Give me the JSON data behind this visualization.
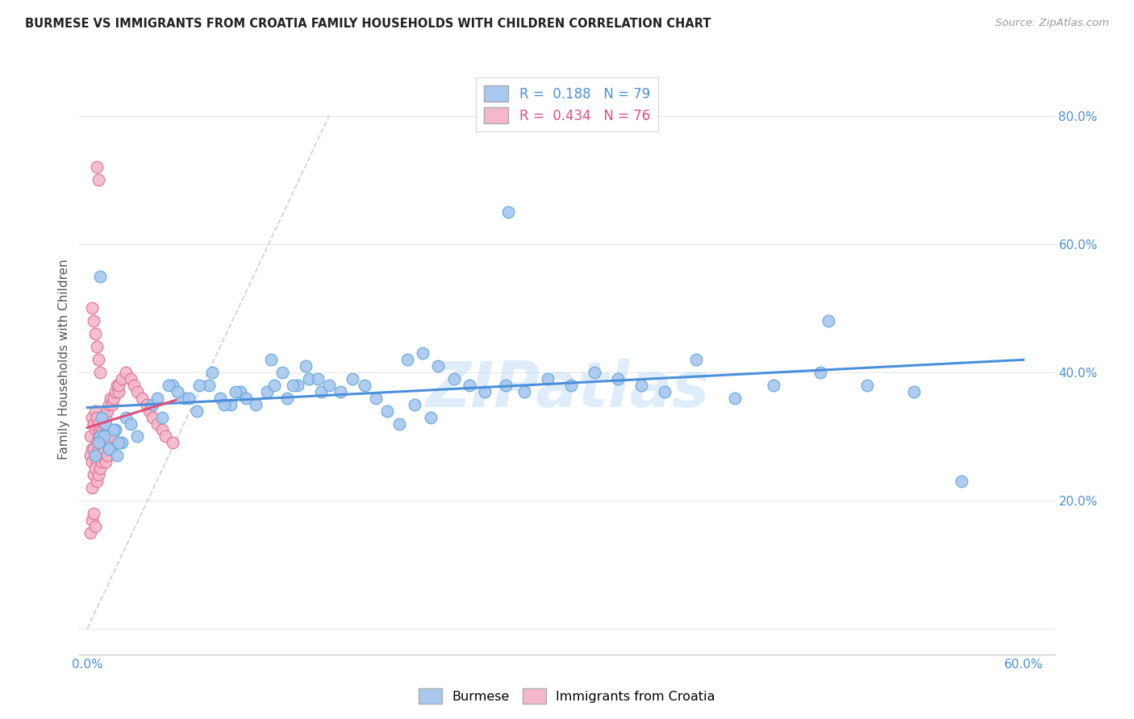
{
  "title": "BURMESE VS IMMIGRANTS FROM CROATIA FAMILY HOUSEHOLDS WITH CHILDREN CORRELATION CHART",
  "source": "Source: ZipAtlas.com",
  "ylabel": "Family Households with Children",
  "ytick_values": [
    0.0,
    0.2,
    0.4,
    0.6,
    0.8
  ],
  "ytick_labels": [
    "",
    "20.0%",
    "40.0%",
    "60.0%",
    "80.0%"
  ],
  "xlim": [
    -0.005,
    0.62
  ],
  "ylim": [
    -0.04,
    0.88
  ],
  "burmese_color": "#a8c8f0",
  "burmese_edge": "#6aaad8",
  "croatia_color": "#f5b8cb",
  "croatia_edge": "#e07898",
  "trendline_burmese_color": "#4a90d9",
  "trendline_croatia_color": "#e0507a",
  "diagonal_color": "#cccccc",
  "watermark": "ZIPatlas",
  "background_color": "#ffffff",
  "grid_color": "#e8e8e8",
  "tick_color": "#4a90d9",
  "burmese_x": [
    0.008,
    0.012,
    0.015,
    0.018,
    0.022,
    0.005,
    0.009,
    0.011,
    0.014,
    0.017,
    0.02,
    0.025,
    0.028,
    0.032,
    0.007,
    0.042,
    0.048,
    0.055,
    0.062,
    0.07,
    0.078,
    0.085,
    0.092,
    0.098,
    0.045,
    0.052,
    0.058,
    0.065,
    0.072,
    0.08,
    0.088,
    0.095,
    0.102,
    0.108,
    0.115,
    0.12,
    0.128,
    0.135,
    0.142,
    0.15,
    0.118,
    0.125,
    0.132,
    0.14,
    0.148,
    0.155,
    0.162,
    0.17,
    0.178,
    0.185,
    0.192,
    0.2,
    0.21,
    0.22,
    0.205,
    0.215,
    0.225,
    0.235,
    0.245,
    0.255,
    0.268,
    0.28,
    0.295,
    0.31,
    0.325,
    0.34,
    0.355,
    0.37,
    0.39,
    0.27,
    0.415,
    0.44,
    0.47,
    0.5,
    0.53,
    0.56,
    0.475,
    0.008,
    0.019
  ],
  "burmese_y": [
    0.3,
    0.32,
    0.28,
    0.31,
    0.29,
    0.27,
    0.33,
    0.3,
    0.28,
    0.31,
    0.29,
    0.33,
    0.32,
    0.3,
    0.29,
    0.35,
    0.33,
    0.38,
    0.36,
    0.34,
    0.38,
    0.36,
    0.35,
    0.37,
    0.36,
    0.38,
    0.37,
    0.36,
    0.38,
    0.4,
    0.35,
    0.37,
    0.36,
    0.35,
    0.37,
    0.38,
    0.36,
    0.38,
    0.39,
    0.37,
    0.42,
    0.4,
    0.38,
    0.41,
    0.39,
    0.38,
    0.37,
    0.39,
    0.38,
    0.36,
    0.34,
    0.32,
    0.35,
    0.33,
    0.42,
    0.43,
    0.41,
    0.39,
    0.38,
    0.37,
    0.38,
    0.37,
    0.39,
    0.38,
    0.4,
    0.39,
    0.38,
    0.37,
    0.42,
    0.65,
    0.36,
    0.38,
    0.4,
    0.38,
    0.37,
    0.23,
    0.48,
    0.55,
    0.27
  ],
  "croatia_x": [
    0.002,
    0.003,
    0.004,
    0.005,
    0.006,
    0.007,
    0.008,
    0.009,
    0.01,
    0.011,
    0.012,
    0.003,
    0.004,
    0.005,
    0.006,
    0.007,
    0.008,
    0.002,
    0.003,
    0.004,
    0.005,
    0.006,
    0.007,
    0.008,
    0.009,
    0.01,
    0.011,
    0.012,
    0.013,
    0.014,
    0.015,
    0.016,
    0.017,
    0.018,
    0.019,
    0.02,
    0.003,
    0.004,
    0.005,
    0.006,
    0.007,
    0.008,
    0.009,
    0.01,
    0.011,
    0.012,
    0.013,
    0.014,
    0.015,
    0.016,
    0.002,
    0.003,
    0.004,
    0.005,
    0.02,
    0.022,
    0.025,
    0.028,
    0.03,
    0.032,
    0.035,
    0.038,
    0.04,
    0.042,
    0.045,
    0.048,
    0.05,
    0.055,
    0.003,
    0.004,
    0.005,
    0.006,
    0.007,
    0.008,
    0.006,
    0.007
  ],
  "croatia_y": [
    0.3,
    0.28,
    0.32,
    0.31,
    0.29,
    0.3,
    0.28,
    0.31,
    0.3,
    0.29,
    0.31,
    0.33,
    0.32,
    0.34,
    0.33,
    0.32,
    0.31,
    0.27,
    0.26,
    0.28,
    0.27,
    0.26,
    0.28,
    0.29,
    0.3,
    0.31,
    0.32,
    0.33,
    0.34,
    0.35,
    0.36,
    0.35,
    0.36,
    0.37,
    0.38,
    0.37,
    0.22,
    0.24,
    0.25,
    0.23,
    0.24,
    0.25,
    0.26,
    0.27,
    0.28,
    0.26,
    0.27,
    0.28,
    0.29,
    0.3,
    0.15,
    0.17,
    0.18,
    0.16,
    0.38,
    0.39,
    0.4,
    0.39,
    0.38,
    0.37,
    0.36,
    0.35,
    0.34,
    0.33,
    0.32,
    0.31,
    0.3,
    0.29,
    0.5,
    0.48,
    0.46,
    0.44,
    0.42,
    0.4,
    0.72,
    0.7
  ]
}
